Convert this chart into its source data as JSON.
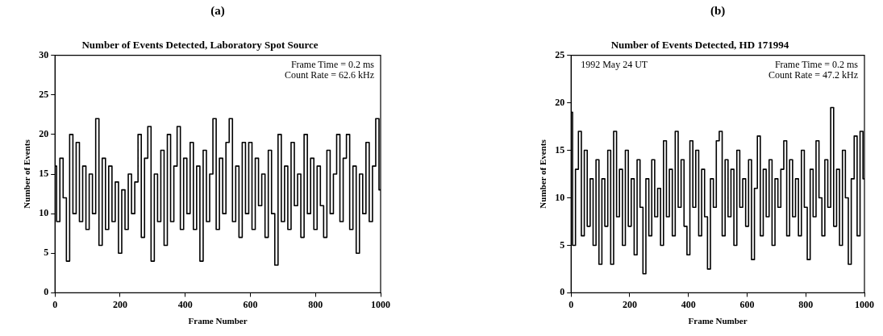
{
  "chart_data": [
    {
      "type": "step",
      "title": "Number of Events Detected, Laboratory Spot Source",
      "xlabel": "Frame Number",
      "ylabel": "Number of Events",
      "annotations": [
        "(a)",
        "Frame Time = 0.2 ms",
        "Count Rate = 62.6 kHz"
      ],
      "xlim": [
        0,
        1000
      ],
      "xticks": [
        0,
        200,
        400,
        600,
        800,
        1000
      ],
      "ylim": [
        0,
        30
      ],
      "yticks": [
        0,
        5,
        10,
        15,
        20,
        25,
        30
      ],
      "grid": false,
      "legend": false,
      "marker": "none",
      "line_style": "solid",
      "series": [
        {
          "color": "#000000",
          "x": [
            0,
            10,
            20,
            30,
            40,
            50,
            60,
            70,
            80,
            90,
            100,
            110,
            120,
            130,
            140,
            150,
            160,
            170,
            180,
            190,
            200,
            210,
            220,
            230,
            240,
            250,
            260,
            270,
            280,
            290,
            300,
            310,
            320,
            330,
            340,
            350,
            360,
            370,
            380,
            390,
            400,
            410,
            420,
            430,
            440,
            450,
            460,
            470,
            480,
            490,
            500,
            510,
            520,
            530,
            540,
            550,
            560,
            570,
            580,
            590,
            600,
            610,
            620,
            630,
            640,
            650,
            660,
            670,
            680,
            690,
            700,
            710,
            720,
            730,
            740,
            750,
            760,
            770,
            780,
            790,
            800,
            810,
            820,
            830,
            840,
            850,
            860,
            870,
            880,
            890,
            900,
            910,
            920,
            930,
            940,
            950,
            960,
            970,
            980,
            990,
            1000
          ],
          "values": [
            16,
            9,
            17,
            12,
            4,
            20,
            10,
            19,
            9,
            16,
            8,
            15,
            10,
            22,
            6,
            17,
            8,
            16,
            9,
            14,
            5,
            13,
            8,
            15,
            10,
            14,
            20,
            7,
            17,
            21,
            4,
            15,
            9,
            18,
            6,
            20,
            9,
            16,
            21,
            8,
            17,
            10,
            19,
            8,
            16,
            4,
            18,
            9,
            15,
            22,
            8,
            17,
            10,
            19,
            22,
            9,
            16,
            7,
            19,
            10,
            19,
            8,
            17,
            11,
            15,
            7,
            18,
            10,
            3.5,
            20,
            9,
            16,
            8,
            19,
            11,
            15,
            7,
            20,
            10,
            17,
            8,
            16,
            11,
            7,
            18,
            10,
            15,
            20,
            9,
            17,
            20,
            8,
            16,
            5,
            15,
            10,
            19,
            9,
            16,
            22,
            13
          ]
        }
      ]
    },
    {
      "type": "step",
      "title": "Number of Events Detected, HD 171994",
      "xlabel": "Frame Number",
      "ylabel": "Number of Events",
      "annotations": [
        "(b)",
        "1992 May 24 UT",
        "Frame Time = 0.2 ms",
        "Count Rate = 47.2 kHz"
      ],
      "xlim": [
        0,
        1000
      ],
      "xticks": [
        0,
        200,
        400,
        600,
        800,
        1000
      ],
      "ylim": [
        0,
        25
      ],
      "yticks": [
        0,
        5,
        10,
        15,
        20,
        25
      ],
      "grid": false,
      "legend": false,
      "marker": "none",
      "line_style": "solid",
      "series": [
        {
          "color": "#000000",
          "x": [
            0,
            10,
            20,
            30,
            40,
            50,
            60,
            70,
            80,
            90,
            100,
            110,
            120,
            130,
            140,
            150,
            160,
            170,
            180,
            190,
            200,
            210,
            220,
            230,
            240,
            250,
            260,
            270,
            280,
            290,
            300,
            310,
            320,
            330,
            340,
            350,
            360,
            370,
            380,
            390,
            400,
            410,
            420,
            430,
            440,
            450,
            460,
            470,
            480,
            490,
            500,
            510,
            520,
            530,
            540,
            550,
            560,
            570,
            580,
            590,
            600,
            610,
            620,
            630,
            640,
            650,
            660,
            670,
            680,
            690,
            700,
            710,
            720,
            730,
            740,
            750,
            760,
            770,
            780,
            790,
            800,
            810,
            820,
            830,
            840,
            850,
            860,
            870,
            880,
            890,
            900,
            910,
            920,
            930,
            940,
            950,
            960,
            970,
            980,
            990,
            1000
          ],
          "values": [
            19,
            5,
            13,
            17,
            6,
            15,
            7,
            12,
            5,
            14,
            3,
            12,
            7,
            15,
            3,
            17,
            8,
            13,
            5,
            15,
            7,
            12,
            4,
            14,
            9,
            2,
            12,
            6,
            14,
            8,
            11,
            5,
            16,
            8,
            13,
            6,
            17,
            9,
            14,
            7,
            4,
            16,
            9,
            15,
            6,
            13,
            8,
            2.5,
            12,
            9,
            16,
            17,
            6,
            14,
            8,
            13,
            5,
            15,
            9,
            12,
            7,
            14,
            3.5,
            11,
            16.5,
            6,
            13,
            8,
            14,
            5,
            12,
            9,
            13,
            16,
            6,
            14,
            8,
            12,
            6,
            15,
            9,
            3.5,
            13,
            8,
            16,
            10,
            6,
            14,
            9,
            19.5,
            7,
            13,
            5,
            15,
            10,
            3,
            12,
            16.5,
            6,
            17,
            12
          ]
        }
      ]
    }
  ]
}
